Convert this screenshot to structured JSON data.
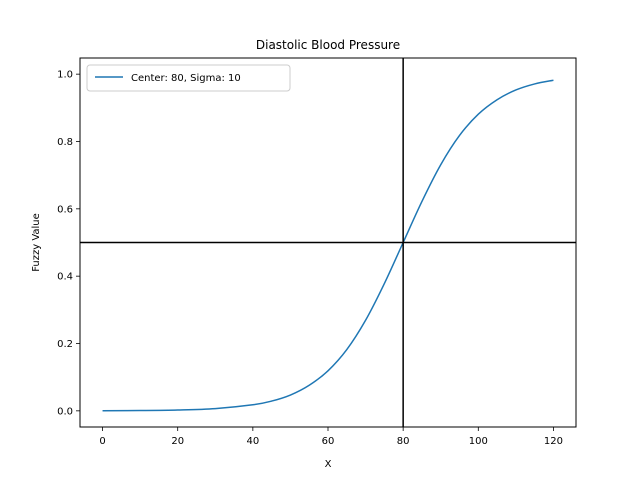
{
  "chart_data": {
    "type": "line",
    "title": "Diastolic Blood Pressure",
    "xlabel": "X",
    "ylabel": "Fuzzy Value",
    "xlim": [
      -6,
      126
    ],
    "ylim": [
      -0.048,
      1.048
    ],
    "xticks": [
      0,
      20,
      40,
      60,
      80,
      100,
      120
    ],
    "yticks": [
      0.0,
      0.2,
      0.4,
      0.6,
      0.8,
      1.0
    ],
    "xtick_labels": [
      "0",
      "20",
      "40",
      "60",
      "80",
      "100",
      "120"
    ],
    "ytick_labels": [
      "0.0",
      "0.2",
      "0.4",
      "0.6",
      "0.8",
      "1.0"
    ],
    "grid": false,
    "legend_position": "top-left",
    "reference_lines": {
      "vertical_x": 80,
      "horizontal_y": 0.5,
      "color": "#000000"
    },
    "series": [
      {
        "name": "Center: 80, Sigma: 10",
        "color": "#1f77b4",
        "x": [
          0,
          10,
          20,
          30,
          40,
          45,
          50,
          55,
          60,
          65,
          70,
          75,
          80,
          85,
          90,
          95,
          100,
          105,
          110,
          115,
          120
        ],
        "y": [
          0.0003,
          0.0009,
          0.0025,
          0.0067,
          0.018,
          0.029,
          0.047,
          0.076,
          0.119,
          0.182,
          0.269,
          0.378,
          0.5,
          0.622,
          0.731,
          0.818,
          0.881,
          0.924,
          0.953,
          0.971,
          0.982
        ]
      }
    ]
  }
}
